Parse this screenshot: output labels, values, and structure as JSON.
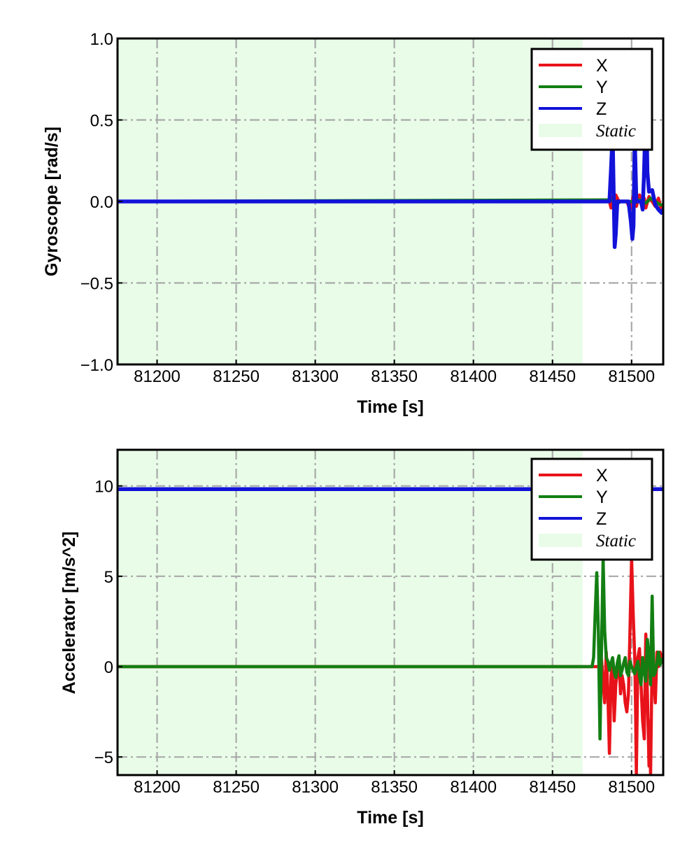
{
  "colors": {
    "x": "#e8131a",
    "y": "#137f13",
    "z": "#1212d9",
    "static": "#e8fce8",
    "grid": "#a9a9a9"
  },
  "chart_data": [
    {
      "type": "line",
      "xlabel": "Time [s]",
      "ylabel": "Gyroscope [rad/s]",
      "xlim": [
        81175,
        81520
      ],
      "ylim": [
        -1.0,
        1.0
      ],
      "xticks": [
        81200,
        81250,
        81300,
        81350,
        81400,
        81450,
        81500
      ],
      "xtick_labels": [
        "81200",
        "81250",
        "81300",
        "81350",
        "81400",
        "81450",
        "81500"
      ],
      "yticks": [
        -1.0,
        -0.5,
        0.0,
        0.5,
        1.0
      ],
      "ytick_labels": [
        "−1.0",
        "−0.5",
        "0.0",
        "0.5",
        "1.0"
      ],
      "grid": true,
      "legend_position": "top-right",
      "static_region": {
        "label": "Static",
        "x": [
          81175,
          81469
        ]
      },
      "series": [
        {
          "name": "X",
          "color_key": "x",
          "x": [
            81175,
            81486,
            81487,
            81488,
            81489,
            81490,
            81492,
            81497,
            81499,
            81500,
            81501,
            81502,
            81503,
            81505,
            81506,
            81507,
            81508,
            81509,
            81511,
            81513,
            81515,
            81517,
            81519,
            81520
          ],
          "y": [
            0.0,
            0.0,
            -0.04,
            0.03,
            -0.05,
            0.04,
            0.0,
            0.0,
            -0.05,
            -0.02,
            0.03,
            0.0,
            -0.03,
            0.04,
            0.0,
            -0.05,
            0.02,
            -0.04,
            0.03,
            0.0,
            -0.03,
            0.02,
            -0.06,
            -0.05
          ]
        },
        {
          "name": "Y",
          "color_key": "y",
          "x": [
            81175,
            81488,
            81490,
            81493,
            81500,
            81502,
            81505,
            81509,
            81512,
            81515,
            81518,
            81520
          ],
          "y": [
            0.0,
            0.01,
            -0.02,
            0.0,
            0.0,
            -0.01,
            0.01,
            -0.01,
            0.02,
            0.0,
            -0.02,
            -0.02
          ]
        },
        {
          "name": "Z",
          "color_key": "z",
          "x": [
            81175,
            81486,
            81487,
            81488,
            81488.7,
            81489.3,
            81490,
            81491,
            81493,
            81498,
            81499.5,
            81500.5,
            81501.2,
            81502,
            81503,
            81504,
            81505,
            81506,
            81507,
            81507.8,
            81508.5,
            81509.3,
            81510,
            81511,
            81513,
            81515,
            81517,
            81519,
            81520
          ],
          "y": [
            0.0,
            0.0,
            0.2,
            0.42,
            0.05,
            -0.28,
            -0.2,
            0.0,
            0.0,
            0.0,
            -0.12,
            -0.23,
            -0.15,
            0.4,
            0.0,
            0.0,
            0.0,
            0.0,
            -0.05,
            0.15,
            0.4,
            0.6,
            0.18,
            0.06,
            0.07,
            -0.02,
            -0.05,
            -0.07,
            -0.05
          ]
        }
      ]
    },
    {
      "type": "line",
      "xlabel": "Time [s]",
      "ylabel": "Accelerator [m/s^2]",
      "xlim": [
        81175,
        81520
      ],
      "ylim": [
        -6,
        12
      ],
      "xticks": [
        81200,
        81250,
        81300,
        81350,
        81400,
        81450,
        81500
      ],
      "xtick_labels": [
        "81200",
        "81250",
        "81300",
        "81350",
        "81400",
        "81450",
        "81500"
      ],
      "yticks": [
        -5,
        0,
        5,
        10
      ],
      "ytick_labels": [
        "−5",
        "0",
        "5",
        "10"
      ],
      "grid": true,
      "legend_position": "top-right",
      "static_region": {
        "label": "Static",
        "x": [
          81175,
          81469
        ]
      },
      "series": [
        {
          "name": "X",
          "color_key": "x",
          "x": [
            81175,
            81479,
            81481,
            81483,
            81484,
            81485,
            81486,
            81487,
            81488,
            81489,
            81490,
            81491,
            81492,
            81493,
            81494,
            81495,
            81496,
            81497,
            81498,
            81499,
            81500,
            81501,
            81502,
            81502.5,
            81503,
            81504,
            81505,
            81506,
            81507,
            81508,
            81509,
            81510,
            81511,
            81511.5,
            81512,
            81513,
            81514,
            81515,
            81516,
            81517,
            81518,
            81519,
            81520
          ],
          "y": [
            0.0,
            0.0,
            0.4,
            -2.0,
            0.8,
            -1.5,
            -4.8,
            -0.5,
            0.3,
            -3.0,
            -1.0,
            -0.3,
            0.5,
            -1.5,
            -0.5,
            -1.0,
            -2.0,
            -2.5,
            -1.5,
            2.0,
            6.0,
            3.0,
            0.5,
            -2.0,
            -6.0,
            0.5,
            1.0,
            -1.0,
            -3.0,
            -4.0,
            1.8,
            -1.5,
            -5.5,
            -3.0,
            -6.0,
            0.5,
            -0.5,
            -2.0,
            0.8,
            0.0,
            0.8,
            0.5,
            0.6
          ]
        },
        {
          "name": "Y",
          "color_key": "y",
          "x": [
            81175,
            81475,
            81476,
            81477,
            81478,
            81479,
            81480,
            81481,
            81482,
            81483,
            81484,
            81485,
            81486,
            81487,
            81488,
            81489,
            81490,
            81491,
            81492,
            81493,
            81494,
            81495,
            81496,
            81497,
            81498,
            81499,
            81500,
            81501,
            81502,
            81503,
            81504,
            81505,
            81506,
            81507,
            81508,
            81509,
            81510,
            81511,
            81512,
            81513,
            81514,
            81515,
            81516,
            81517,
            81518,
            81519,
            81520
          ],
          "y": [
            0.0,
            0.0,
            0.5,
            3.0,
            5.2,
            2.0,
            -4.0,
            1.0,
            6.0,
            2.0,
            0.5,
            0.3,
            -0.2,
            0.2,
            0.5,
            -0.3,
            -0.6,
            0.2,
            0.6,
            -0.5,
            -0.2,
            0.2,
            0.5,
            -0.3,
            -0.5,
            0.3,
            0.0,
            -0.2,
            -0.4,
            0.0,
            0.3,
            -0.5,
            -1.0,
            0.5,
            -0.3,
            -0.8,
            1.5,
            0.5,
            -1.0,
            3.9,
            -0.5,
            -0.3,
            0.2,
            0.8,
            0.1,
            0.4,
            0.4
          ]
        },
        {
          "name": "Z",
          "color_key": "z",
          "x": [
            81175,
            81520
          ],
          "y": [
            9.82,
            9.82
          ]
        }
      ]
    }
  ]
}
